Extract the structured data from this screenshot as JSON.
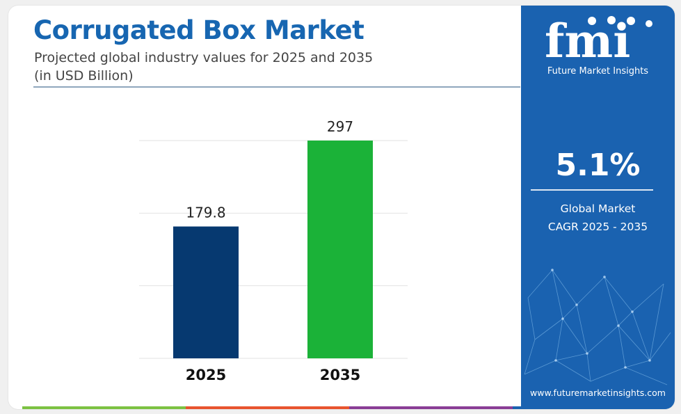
{
  "header": {
    "title": "Corrugated Box Market",
    "subtitle_line1": "Projected global industry values for 2025 and 2035",
    "subtitle_line2": "(in USD Billion)"
  },
  "chart_data": {
    "type": "bar",
    "title": "Corrugated Box Market",
    "subtitle": "Projected global industry values for 2025 and 2035 (in USD Billion)",
    "categories": [
      "2025",
      "2035"
    ],
    "values": [
      179.8,
      297
    ],
    "value_labels": [
      "179.8",
      "297"
    ],
    "bar_colors": [
      "#063970",
      "#1bb238"
    ],
    "ylim": [
      0,
      297
    ],
    "grid": true,
    "legend": "none",
    "xlabel": "",
    "ylabel": ""
  },
  "sidebar": {
    "logo_text": "fmi",
    "logo_caption": "Future Market Insights",
    "cagr_value": "5.1%",
    "cagr_label_line1": "Global Market",
    "cagr_label_line2": "CAGR 2025 - 2035",
    "website": "www.futuremarketinsights.com"
  },
  "colors": {
    "title": "#1766b1",
    "panel": "#1a62b0",
    "stripe": [
      "#7cc242",
      "#e8542e",
      "#8a3d96",
      "#1a62b0"
    ]
  }
}
